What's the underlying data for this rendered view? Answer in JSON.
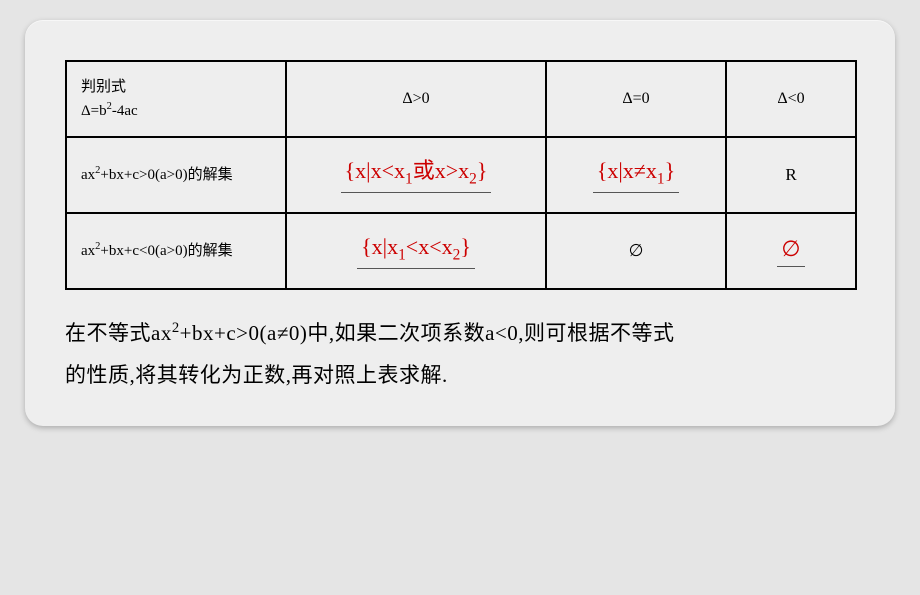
{
  "table": {
    "colWidths": [
      "220px",
      "260px",
      "180px",
      "130px"
    ],
    "header": {
      "discriminant_label": "判别式",
      "discriminant_expr_pre": "Δ=b",
      "discriminant_expr_sup": "2",
      "discriminant_expr_post": "-4ac",
      "col2": "Δ>0",
      "col3": "Δ=0",
      "col4": "Δ<0"
    },
    "row_gt": {
      "label_pre": "ax",
      "label_sup": "2",
      "label_post": "+bx+c>0(a>0)的解集",
      "cell2_a": "{x|x<x",
      "cell2_s1": "1",
      "cell2_b": "或x>x",
      "cell2_s2": "2",
      "cell2_c": "}",
      "cell3_a": "{x|x≠x",
      "cell3_s1": "1",
      "cell3_b": "}",
      "cell4": "R"
    },
    "row_lt": {
      "label_pre": "ax",
      "label_sup": "2",
      "label_post": "+bx+c<0(a>0)的解集",
      "cell2_a": "{x|x",
      "cell2_s1": "1",
      "cell2_b": "<x<x",
      "cell2_s2": "2",
      "cell2_c": "}",
      "cell3": "∅",
      "cell4": "∅"
    }
  },
  "caption": {
    "p1a": "在不等式ax",
    "p1sup": "2",
    "p1b": "+bx+c>0(a≠0)中,如果二次项系数a<0,则可根据不等式",
    "p2": "的性质,将其转化为正数,再对照上表求解."
  },
  "colors": {
    "answer": "#cc0000",
    "text": "#000000",
    "pageBg": "#eeeeee",
    "bodyBg": "#e5e5e5",
    "border": "#000000",
    "underline": "#555555"
  }
}
